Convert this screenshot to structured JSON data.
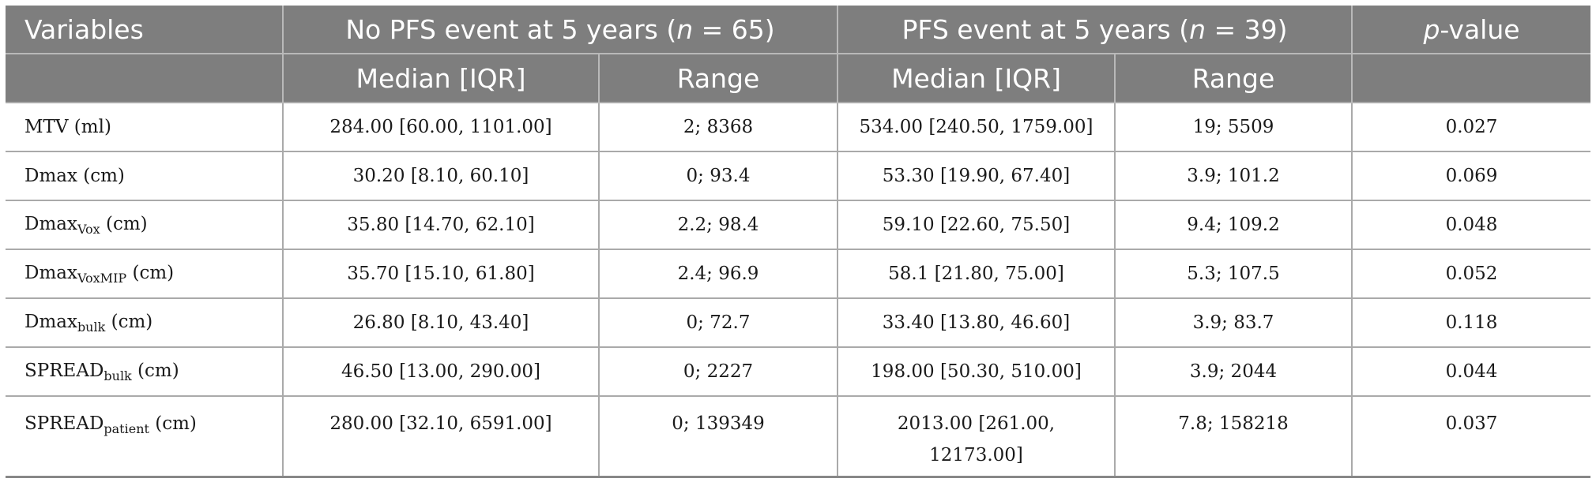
{
  "header": {
    "variables": "Variables",
    "group1_prefix": "No PFS event at 5 years (",
    "group1_n": "n",
    "group1_suffix": " = 65)",
    "group2_prefix": "PFS event at 5 years (",
    "group2_n": "n",
    "group2_suffix": " = 39)",
    "pvalue_p": "p",
    "pvalue_suffix": "-value",
    "median_iqr": "Median [IQR]",
    "range": "Range"
  },
  "rows": [
    {
      "name": "MTV (ml)",
      "sub": "",
      "unit": "",
      "g1_median": "284.00 [60.00, 1101.00]",
      "g1_range": "2; 8368",
      "g2_median": "534.00 [240.50, 1759.00]",
      "g2_range": "19; 5509",
      "p": "0.027"
    },
    {
      "name": "Dmax (cm)",
      "sub": "",
      "unit": "",
      "g1_median": "30.20 [8.10, 60.10]",
      "g1_range": "0; 93.4",
      "g2_median": "53.30 [19.90, 67.40]",
      "g2_range": "3.9; 101.2",
      "p": "0.069"
    },
    {
      "name": "Dmax",
      "sub": "Vox",
      "unit": " (cm)",
      "g1_median": "35.80 [14.70, 62.10]",
      "g1_range": "2.2; 98.4",
      "g2_median": "59.10 [22.60, 75.50]",
      "g2_range": "9.4; 109.2",
      "p": "0.048"
    },
    {
      "name": "Dmax",
      "sub": "VoxMIP",
      "unit": " (cm)",
      "g1_median": "35.70 [15.10, 61.80]",
      "g1_range": "2.4; 96.9",
      "g2_median": "58.1 [21.80, 75.00]",
      "g2_range": "5.3; 107.5",
      "p": "0.052"
    },
    {
      "name": "Dmax",
      "sub": "bulk",
      "unit": " (cm)",
      "g1_median": "26.80 [8.10, 43.40]",
      "g1_range": "0; 72.7",
      "g2_median": "33.40 [13.80, 46.60]",
      "g2_range": "3.9; 83.7",
      "p": "0.118"
    },
    {
      "name": "SPREAD",
      "sub": "bulk",
      "unit": " (cm)",
      "g1_median": "46.50 [13.00, 290.00]",
      "g1_range": "0; 2227",
      "g2_median": "198.00 [50.30, 510.00]",
      "g2_range": "3.9; 2044",
      "p": "0.044"
    },
    {
      "name": "SPREAD",
      "sub": "patient",
      "unit": " (cm)",
      "g1_median": "280.00 [32.10, 6591.00]",
      "g1_range": "0; 139349",
      "g2_median_line1": "2013.00 [261.00,",
      "g2_median_line2": "12173.00]",
      "g2_range": "7.8; 158218",
      "p": "0.037"
    }
  ]
}
